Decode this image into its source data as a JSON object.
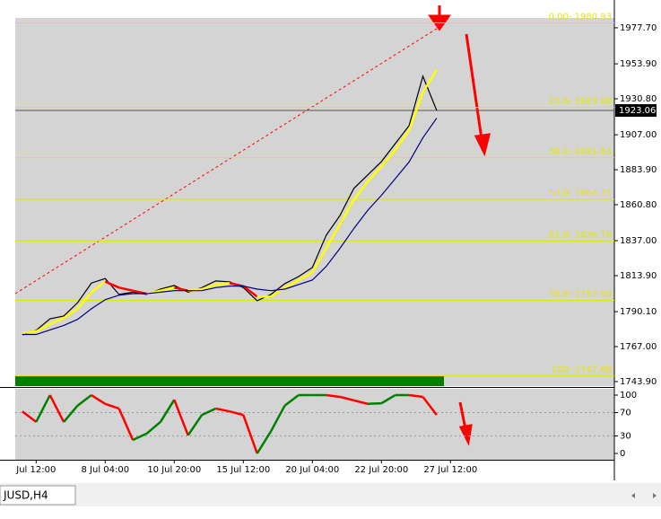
{
  "chart_data": [
    {
      "type": "line",
      "categories": [
        null,
        null,
        null,
        null,
        null,
        null,
        null,
        null,
        null,
        null,
        null,
        null,
        null,
        null,
        null,
        null,
        null,
        null,
        null,
        null,
        null,
        null,
        null,
        null,
        null,
        null,
        null,
        null,
        null,
        null,
        null,
        null
      ],
      "series": [
        {
          "color": "#000000",
          "values": [
            1774.8,
            1777.7,
            1785.4,
            1787.2,
            1796,
            1809,
            1812,
            1801.5,
            1803,
            1801.5,
            1805,
            1807.4,
            1803,
            1806,
            1810.4,
            1809.8,
            1806,
            1797.3,
            1801.5,
            1808.6,
            1813.3,
            1819.3,
            1840.6,
            1853.7,
            1871.5,
            1880.4,
            1889.3,
            1901.2,
            1913,
            1945.7,
            1923.06,
            null
          ]
        },
        {
          "color": "#ffff00",
          "down_color": "#ff0000",
          "values": [
            1776,
            1777,
            1782,
            1786,
            1792,
            1803,
            1810,
            1806,
            1804,
            1802,
            1804,
            1806,
            1804,
            1805,
            1808,
            1809,
            1807,
            1800,
            1800,
            1806,
            1811,
            1816,
            1832,
            1848,
            1864,
            1876,
            1886,
            1897,
            1910,
            1935,
            1950,
            null
          ]
        },
        {
          "color": "#000080",
          "values": [
            1775,
            1775,
            1778,
            1781,
            1785,
            1792,
            1798,
            1801,
            1802,
            1802,
            1803,
            1804,
            1804,
            1804,
            1806,
            1807,
            1807,
            1805,
            1804,
            1805,
            1808,
            1811,
            1820,
            1832,
            1845,
            1857,
            1867,
            1878,
            1889,
            1905,
            1918,
            null
          ]
        }
      ],
      "ylim": [
        1740.9,
        1984.2
      ],
      "yticks": [
        {
          "value": 1977.7,
          "label": "1977.70"
        },
        {
          "value": 1953.9,
          "label": "1953.90"
        },
        {
          "value": 1930.8,
          "label": "1930.80"
        },
        {
          "value": 1907,
          "label": "1907.00"
        },
        {
          "value": 1883.9,
          "label": "1883.90"
        },
        {
          "value": 1860.8,
          "label": "1860.80"
        },
        {
          "value": 1837,
          "label": "1837.00"
        },
        {
          "value": 1813.9,
          "label": "1813.90"
        },
        {
          "value": 1790.1,
          "label": "1790.10"
        },
        {
          "value": 1767,
          "label": "1767.00"
        },
        {
          "value": 1743.9,
          "label": "1743.90"
        }
      ],
      "fib_levels": [
        {
          "value": 1980.93,
          "label": "0.00- 1980.93"
        },
        {
          "value": 1925.08,
          "label": "23.6- 1925.08"
        },
        {
          "value": 1891.83,
          "label": "38.2- 1891.83"
        },
        {
          "value": 1864.31,
          "label": "50.0- 1864.31"
        },
        {
          "value": 1836.78,
          "label": "61.8- 1836.78"
        },
        {
          "value": 1797.6,
          "label": "78.6- 1797.60"
        },
        {
          "value": 1747.68,
          "label": "100- 1747.68"
        }
      ],
      "fib_color": "#e6e600",
      "current_price": 1923.06
    },
    {
      "type": "line",
      "categories": [
        null,
        "Jul 12:00",
        null,
        null,
        null,
        null,
        "8 Jul 04:00",
        null,
        null,
        null,
        null,
        "10 Jul 20:00",
        null,
        null,
        null,
        null,
        "15 Jul 12:00",
        null,
        null,
        null,
        null,
        "20 Jul 04:00",
        null,
        null,
        null,
        null,
        "22 Jul 20:00",
        null,
        null,
        null,
        null,
        "27 Jul 12:00"
      ],
      "series": [
        {
          "color": "#008000",
          "down_color": "#ff0000",
          "values": [
            72,
            54,
            100,
            54,
            82,
            100,
            85,
            77,
            23,
            34,
            54,
            92,
            31,
            66,
            77,
            72,
            66,
            0,
            38,
            82,
            100,
            100,
            100,
            97,
            91,
            85,
            86,
            100,
            100,
            97,
            66,
            null
          ]
        }
      ],
      "ylim": [
        -10.8,
        110.8
      ],
      "yticks": [
        100,
        70,
        30,
        0
      ],
      "levels": [
        70,
        30
      ]
    }
  ],
  "window": {
    "tab": "JUSD,H4"
  }
}
